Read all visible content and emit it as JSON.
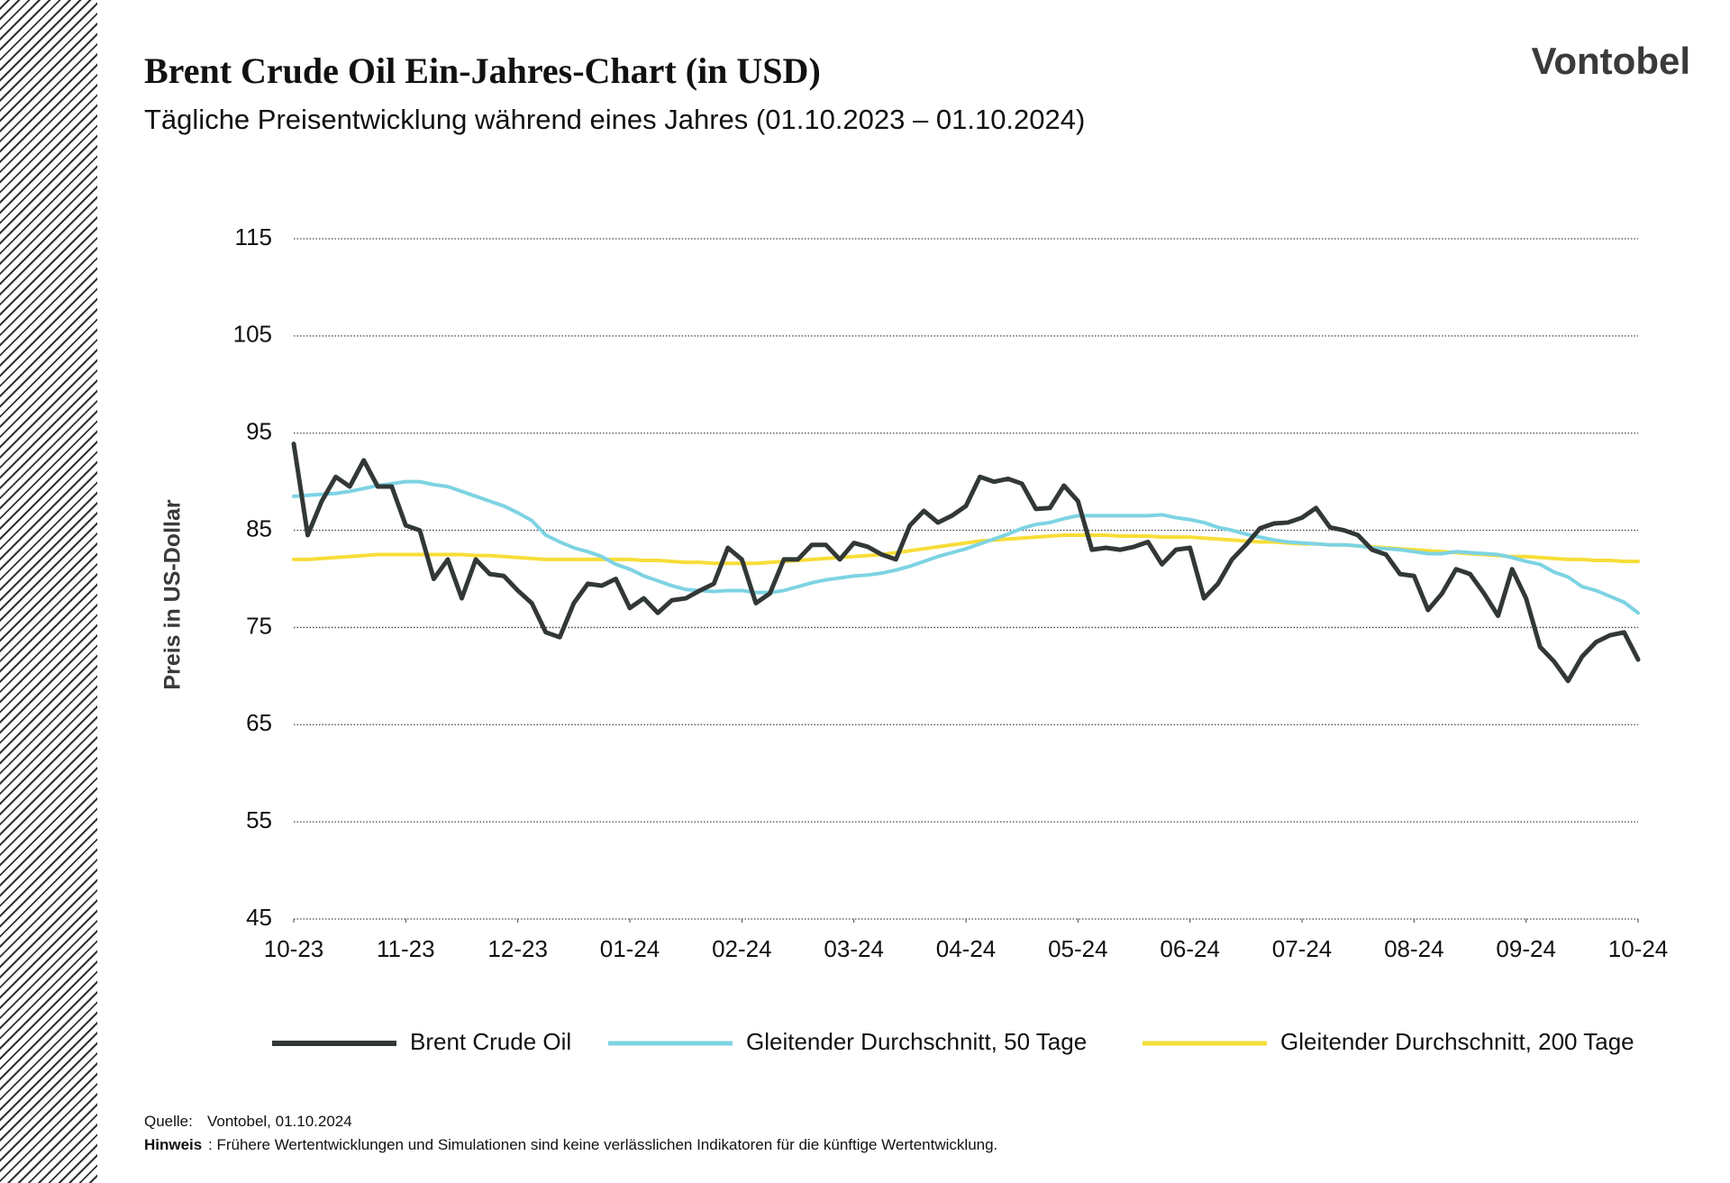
{
  "brand": "Vontobel",
  "chart_data": {
    "type": "line",
    "title": "Brent Crude Oil Ein-Jahres-Chart (in USD)",
    "subtitle": "Tägliche Preisentwicklung während eines Jahres (01.10.2023 – 01.10.2024)",
    "y_label": "Preis in US-Dollar",
    "xlim": [
      0,
      12
    ],
    "xticks": [
      {
        "value": 0,
        "label": "10-23"
      },
      {
        "value": 1,
        "label": "11-23"
      },
      {
        "value": 2,
        "label": "12-23"
      },
      {
        "value": 3,
        "label": "01-24"
      },
      {
        "value": 4,
        "label": "02-24"
      },
      {
        "value": 5,
        "label": "03-24"
      },
      {
        "value": 6,
        "label": "04-24"
      },
      {
        "value": 7,
        "label": "05-24"
      },
      {
        "value": 8,
        "label": "06-24"
      },
      {
        "value": 9,
        "label": "07-24"
      },
      {
        "value": 10,
        "label": "08-24"
      },
      {
        "value": 11,
        "label": "09-24"
      },
      {
        "value": 12,
        "label": "10-24"
      }
    ],
    "ylim": [
      45,
      115
    ],
    "yticks": [
      45,
      55,
      65,
      75,
      85,
      95,
      105,
      115
    ],
    "grid": true,
    "legend": "bottom",
    "x": [
      0,
      0.125,
      0.25,
      0.375,
      0.5,
      0.625,
      0.75,
      0.875,
      1,
      1.125,
      1.25,
      1.375,
      1.5,
      1.625,
      1.75,
      1.875,
      2,
      2.125,
      2.25,
      2.375,
      2.5,
      2.625,
      2.75,
      2.875,
      3,
      3.125,
      3.25,
      3.375,
      3.5,
      3.625,
      3.75,
      3.875,
      4,
      4.125,
      4.25,
      4.375,
      4.5,
      4.625,
      4.75,
      4.875,
      5,
      5.125,
      5.25,
      5.375,
      5.5,
      5.625,
      5.75,
      5.875,
      6,
      6.125,
      6.25,
      6.375,
      6.5,
      6.625,
      6.75,
      6.875,
      7,
      7.125,
      7.25,
      7.375,
      7.5,
      7.625,
      7.75,
      7.875,
      8,
      8.125,
      8.25,
      8.375,
      8.5,
      8.625,
      8.75,
      8.875,
      9,
      9.125,
      9.25,
      9.375,
      9.5,
      9.625,
      9.75,
      9.875,
      10,
      10.125,
      10.25,
      10.375,
      10.5,
      10.625,
      10.75,
      10.875,
      11,
      11.125,
      11.25,
      11.375,
      11.5,
      11.625,
      11.75,
      11.875,
      12
    ],
    "series": [
      {
        "name": "Brent Crude Oil",
        "color": "#323836",
        "width": 5,
        "values": [
          93.9,
          84.5,
          88,
          90.5,
          89.5,
          92.2,
          89.5,
          89.5,
          85.5,
          85,
          80,
          82,
          78,
          82,
          80.5,
          80.3,
          78.8,
          77.5,
          74.5,
          74,
          77.5,
          79.5,
          79.3,
          80,
          77,
          78,
          76.5,
          77.8,
          78,
          78.8,
          79.5,
          83.2,
          82,
          77.5,
          78.5,
          82,
          82,
          83.5,
          83.5,
          82,
          83.7,
          83.3,
          82.5,
          82,
          85.5,
          87,
          85.8,
          86.5,
          87.5,
          90.5,
          90,
          90.3,
          89.8,
          87.2,
          87.3,
          89.6,
          88,
          83,
          83.2,
          83,
          83.3,
          83.8,
          81.5,
          83,
          83.2,
          78,
          79.5,
          82,
          83.5,
          85.2,
          85.7,
          85.8,
          86.3,
          87.3,
          85.3,
          85,
          84.5,
          83,
          82.5,
          80.5,
          80.3,
          76.8,
          78.5,
          81,
          80.5,
          78.5,
          76.2,
          81,
          78,
          73,
          71.5,
          69.5,
          72,
          73.5,
          74.2,
          74.5,
          71.7
        ]
      },
      {
        "name": "Gleitender Durchschnitt, 50 Tage",
        "color": "#7dd3e3",
        "width": 4,
        "values": [
          88.5,
          88.6,
          88.7,
          88.8,
          89,
          89.3,
          89.6,
          89.8,
          90,
          90,
          89.7,
          89.5,
          89,
          88.5,
          88,
          87.5,
          86.8,
          86,
          84.5,
          83.8,
          83.2,
          82.8,
          82.3,
          81.5,
          81,
          80.3,
          79.8,
          79.3,
          78.9,
          78.8,
          78.7,
          78.8,
          78.8,
          78.6,
          78.6,
          78.8,
          79.2,
          79.6,
          79.9,
          80.1,
          80.3,
          80.4,
          80.6,
          80.9,
          81.3,
          81.8,
          82.3,
          82.7,
          83.1,
          83.6,
          84.1,
          84.6,
          85.2,
          85.6,
          85.8,
          86.2,
          86.5,
          86.5,
          86.5,
          86.5,
          86.5,
          86.5,
          86.6,
          86.3,
          86.1,
          85.8,
          85.3,
          85,
          84.6,
          84.3,
          84,
          83.8,
          83.7,
          83.6,
          83.5,
          83.5,
          83.4,
          83.2,
          83.1,
          83,
          82.8,
          82.6,
          82.6,
          82.8,
          82.7,
          82.6,
          82.5,
          82.2,
          81.8,
          81.5,
          80.7,
          80.2,
          79.2,
          78.8,
          78.2,
          77.6,
          76.5
        ]
      },
      {
        "name": "Gleitender Durchschnitt, 200 Tage",
        "color": "#f7dd38",
        "width": 4,
        "values": [
          82,
          82,
          82.1,
          82.2,
          82.3,
          82.4,
          82.5,
          82.5,
          82.5,
          82.5,
          82.5,
          82.5,
          82.5,
          82.4,
          82.4,
          82.3,
          82.2,
          82.1,
          82,
          82,
          82,
          82,
          82,
          82,
          82,
          81.9,
          81.9,
          81.8,
          81.7,
          81.7,
          81.6,
          81.6,
          81.6,
          81.6,
          81.7,
          81.8,
          81.9,
          82,
          82.1,
          82.2,
          82.3,
          82.4,
          82.5,
          82.7,
          82.9,
          83.1,
          83.3,
          83.5,
          83.7,
          83.9,
          84,
          84.1,
          84.2,
          84.3,
          84.4,
          84.5,
          84.5,
          84.5,
          84.5,
          84.4,
          84.4,
          84.4,
          84.3,
          84.3,
          84.3,
          84.2,
          84.1,
          84,
          83.9,
          83.8,
          83.8,
          83.7,
          83.6,
          83.6,
          83.5,
          83.5,
          83.4,
          83.3,
          83.2,
          83.1,
          83,
          82.9,
          82.8,
          82.7,
          82.6,
          82.5,
          82.4,
          82.3,
          82.3,
          82.2,
          82.1,
          82,
          82,
          81.9,
          81.9,
          81.8,
          81.8
        ]
      }
    ]
  },
  "footer": {
    "source_label": "Quelle:",
    "source": "Vontobel,  01.10.2024",
    "note_label": "Hinweis",
    "note": ": Frühere Wertentwicklungen und Simulationen sind keine verlässlichen Indikatoren für die künftige Wertentwicklung."
  }
}
